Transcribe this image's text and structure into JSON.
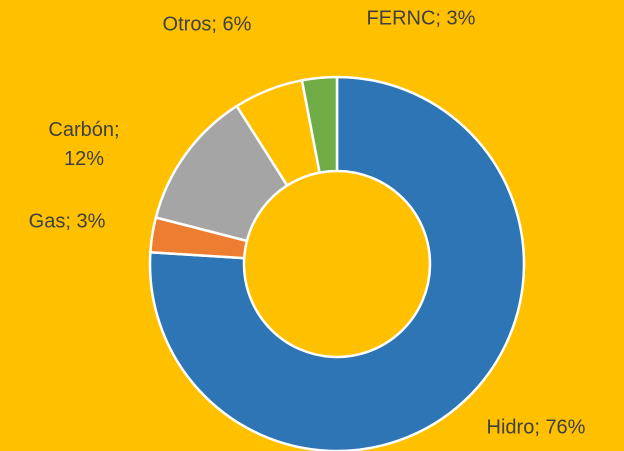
{
  "chart_data": {
    "type": "donut",
    "values": [
      76,
      3,
      12,
      6,
      3
    ],
    "value_labels": [
      "Hidro; 76%",
      "Gas; 3%",
      "Carbón; 12%",
      "Otros; 6%",
      "FERNC; 3%"
    ],
    "colors": [
      "#2e75b6",
      "#ed7d31",
      "#a5a5a5",
      "#ffc000",
      "#70ad47"
    ],
    "background": "#ffc000"
  }
}
